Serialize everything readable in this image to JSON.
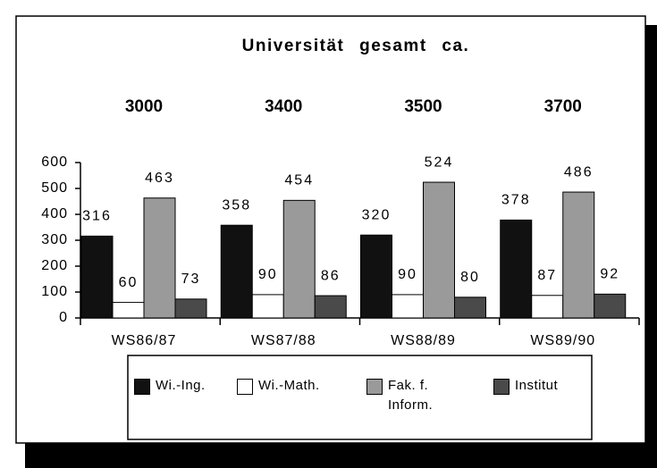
{
  "chart_data": {
    "type": "bar",
    "title": "Universität gesamt ca.",
    "group_totals": [
      3000,
      3400,
      3500,
      3700
    ],
    "categories": [
      "WS86/87",
      "WS87/88",
      "WS88/89",
      "WS89/90"
    ],
    "series": [
      {
        "name": "Wi.-Ing.",
        "color": "#111111",
        "values": [
          316,
          358,
          320,
          378
        ]
      },
      {
        "name": "Wi.-Math.",
        "color": "#ffffff",
        "values": [
          60,
          90,
          90,
          87
        ]
      },
      {
        "name": "Fak. f. Inform.",
        "color": "#9a9a9a",
        "values": [
          463,
          454,
          524,
          486
        ]
      },
      {
        "name": "Institut",
        "color": "#4a4a4a",
        "values": [
          73,
          86,
          80,
          92
        ]
      }
    ],
    "ylim": [
      0,
      600
    ],
    "yticks": [
      0,
      100,
      200,
      300,
      400,
      500,
      600
    ]
  }
}
